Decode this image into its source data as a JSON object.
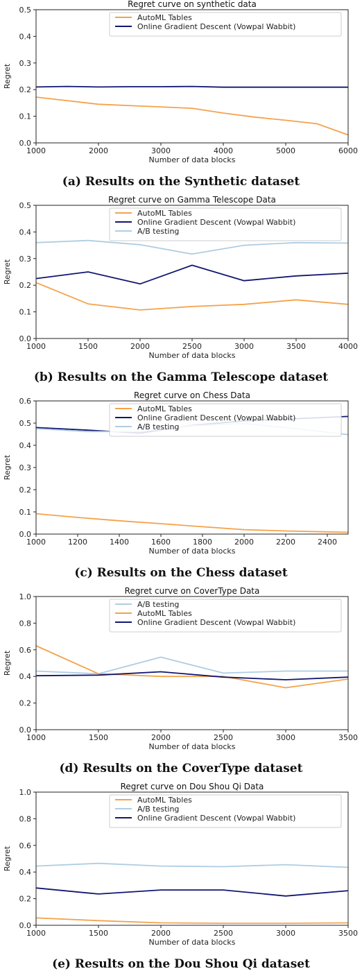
{
  "colors": {
    "automl": "#f5a24a",
    "ogd": "#101670",
    "ab": "#aecde3",
    "axis": "#222222"
  },
  "chart_data": [
    {
      "type": "line",
      "title": "Regret curve on synthetic data",
      "xlabel": "Number of data blocks",
      "ylabel": "Regret",
      "xlim": [
        1000,
        6000
      ],
      "ylim": [
        0,
        0.5
      ],
      "xticks": [
        "1000",
        "2000",
        "3000",
        "4000",
        "5000",
        "6000"
      ],
      "yticks": [
        "0.0",
        "0.1",
        "0.2",
        "0.3",
        "0.4",
        "0.5"
      ],
      "legend": "top-right",
      "series": [
        {
          "name": "AutoML Tables",
          "color": "#f5a24a",
          "x": [
            1000,
            2000,
            2700,
            3500,
            4000,
            4500,
            5000,
            5500,
            6000
          ],
          "y": [
            0.172,
            0.145,
            0.138,
            0.13,
            0.112,
            0.097,
            0.085,
            0.072,
            0.03
          ]
        },
        {
          "name": "Online Gradient Descent (Vowpal Wabbit)",
          "color": "#101670",
          "x": [
            1000,
            1500,
            2000,
            2500,
            3000,
            3500,
            4000,
            5000,
            6000
          ],
          "y": [
            0.21,
            0.212,
            0.21,
            0.211,
            0.211,
            0.212,
            0.209,
            0.209,
            0.209
          ]
        }
      ],
      "caption": "(a) Results on the Synthetic dataset"
    },
    {
      "type": "line",
      "title": "Regret curve on Gamma Telescope Data",
      "xlabel": "Number of data blocks",
      "ylabel": "Regret",
      "xlim": [
        1000,
        4000
      ],
      "ylim": [
        0,
        0.5
      ],
      "xticks": [
        "1000",
        "1500",
        "2000",
        "2500",
        "3000",
        "3500",
        "4000"
      ],
      "yticks": [
        "0.0",
        "0.1",
        "0.2",
        "0.3",
        "0.4",
        "0.5"
      ],
      "legend": "top-right",
      "series": [
        {
          "name": "AutoML Tables",
          "color": "#f5a24a",
          "x": [
            1000,
            1500,
            2000,
            2500,
            3000,
            3500,
            4000
          ],
          "y": [
            0.21,
            0.13,
            0.107,
            0.12,
            0.128,
            0.145,
            0.128
          ]
        },
        {
          "name": "Online Gradient Descent (Vowpal Wabbit)",
          "color": "#101670",
          "x": [
            1000,
            1500,
            2000,
            2500,
            3000,
            3500,
            4000
          ],
          "y": [
            0.225,
            0.25,
            0.205,
            0.275,
            0.217,
            0.235,
            0.245
          ]
        },
        {
          "name": "A/B testing",
          "color": "#aecde3",
          "x": [
            1000,
            1500,
            2000,
            2500,
            3000,
            3500,
            4000
          ],
          "y": [
            0.36,
            0.368,
            0.352,
            0.317,
            0.35,
            0.36,
            0.358
          ]
        }
      ],
      "caption": "(b) Results on the Gamma Telescope dataset"
    },
    {
      "type": "line",
      "title": "Regret curve on Chess Data",
      "xlabel": "Number of data blocks",
      "ylabel": "Regret",
      "xlim": [
        1000,
        2500
      ],
      "ylim": [
        0,
        0.6
      ],
      "xticks": [
        "1000",
        "1200",
        "1400",
        "1600",
        "1800",
        "2000",
        "2200",
        "2400"
      ],
      "yticks": [
        "0.0",
        "0.1",
        "0.2",
        "0.3",
        "0.4",
        "0.5",
        "0.6"
      ],
      "legend": "top-right",
      "series": [
        {
          "name": "AutoML Tables",
          "color": "#f5a24a",
          "x": [
            1000,
            1200,
            1400,
            1600,
            1800,
            2000,
            2200,
            2400,
            2500
          ],
          "y": [
            0.092,
            0.075,
            0.06,
            0.047,
            0.033,
            0.02,
            0.014,
            0.01,
            0.008
          ]
        },
        {
          "name": "Online Gradient Descent (Vowpal Wabbit)",
          "color": "#101670",
          "x": [
            1000,
            1250,
            1500,
            1750,
            2000,
            2250,
            2500
          ],
          "y": [
            0.48,
            0.468,
            0.455,
            0.49,
            0.51,
            0.52,
            0.53
          ]
        },
        {
          "name": "A/B testing",
          "color": "#aecde3",
          "x": [
            1000,
            1250,
            1500,
            1750,
            2000,
            2250,
            2500
          ],
          "y": [
            0.475,
            0.462,
            0.462,
            0.488,
            0.498,
            0.475,
            0.448
          ]
        }
      ],
      "caption": "(c) Results on the Chess dataset"
    },
    {
      "type": "line",
      "title": "Regret curve on CoverType Data",
      "xlabel": "Number of data blocks",
      "ylabel": "Regret",
      "xlim": [
        1000,
        3500
      ],
      "ylim": [
        0,
        1.0
      ],
      "xticks": [
        "1000",
        "1500",
        "2000",
        "2500",
        "3000",
        "3500"
      ],
      "yticks": [
        "0.0",
        "0.2",
        "0.4",
        "0.6",
        "0.8",
        "1.0"
      ],
      "legend": "top-right",
      "series": [
        {
          "name": "A/B testing",
          "color": "#aecde3",
          "x": [
            1000,
            1500,
            2000,
            2500,
            3000,
            3500
          ],
          "y": [
            0.44,
            0.42,
            0.545,
            0.425,
            0.44,
            0.44
          ]
        },
        {
          "name": "AutoML Tables",
          "color": "#f5a24a",
          "x": [
            1000,
            1500,
            2000,
            2500,
            3000,
            3500
          ],
          "y": [
            0.63,
            0.42,
            0.4,
            0.4,
            0.315,
            0.38
          ]
        },
        {
          "name": "Online Gradient Descent (Vowpal Wabbit)",
          "color": "#101670",
          "x": [
            1000,
            1500,
            2000,
            2500,
            3000,
            3500
          ],
          "y": [
            0.405,
            0.41,
            0.435,
            0.395,
            0.375,
            0.395
          ]
        }
      ],
      "caption": "(d) Results on the CoverType dataset"
    },
    {
      "type": "line",
      "title": "Regret curve on Dou Shou Qi Data",
      "xlabel": "Number of data blocks",
      "ylabel": "Regret",
      "xlim": [
        1000,
        3500
      ],
      "ylim": [
        0,
        1.0
      ],
      "xticks": [
        "1000",
        "1500",
        "2000",
        "2500",
        "3000",
        "3500"
      ],
      "yticks": [
        "0.0",
        "0.2",
        "0.4",
        "0.6",
        "0.8",
        "1.0"
      ],
      "legend": "top-right",
      "series": [
        {
          "name": "AutoML Tables",
          "color": "#f5a24a",
          "x": [
            1000,
            1500,
            2000,
            2500,
            3000,
            3500
          ],
          "y": [
            0.055,
            0.035,
            0.018,
            0.015,
            0.015,
            0.018
          ]
        },
        {
          "name": "A/B testing",
          "color": "#aecde3",
          "x": [
            1000,
            1500,
            2000,
            2500,
            3000,
            3500
          ],
          "y": [
            0.445,
            0.465,
            0.445,
            0.44,
            0.455,
            0.435
          ]
        },
        {
          "name": "Online Gradient Descent (Vowpal Wabbit)",
          "color": "#101670",
          "x": [
            1000,
            1500,
            2000,
            2500,
            3000,
            3500
          ],
          "y": [
            0.28,
            0.235,
            0.265,
            0.265,
            0.22,
            0.26
          ]
        }
      ],
      "caption": "(e) Results on the Dou Shou Qi dataset"
    }
  ]
}
